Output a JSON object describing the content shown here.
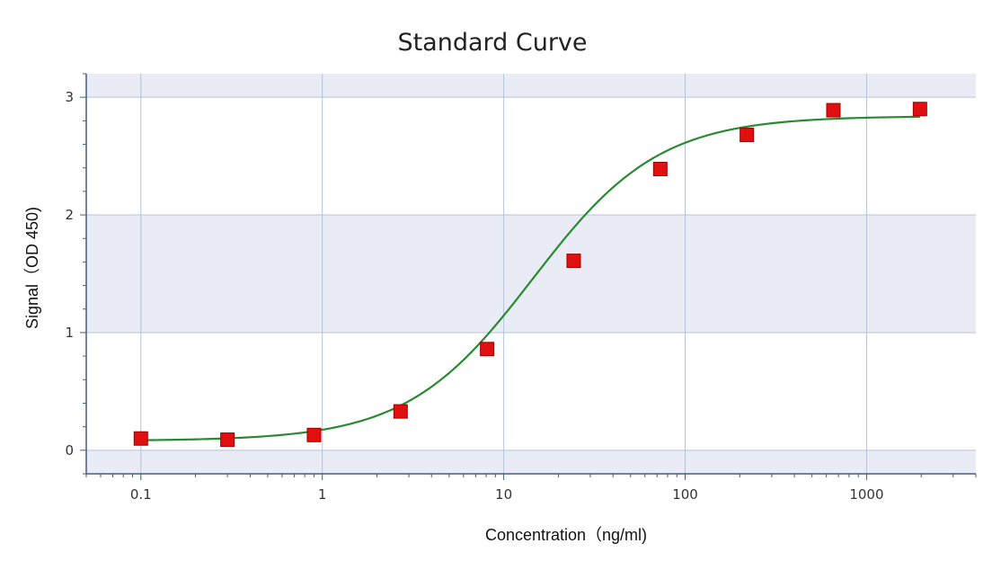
{
  "chart_data": {
    "type": "scatter",
    "title": "Standard Curve",
    "xlabel": "Concentration（ng/ml)",
    "ylabel": "Signal（OD 450)",
    "x_scale": "log",
    "xlim": [
      0.05,
      4000
    ],
    "ylim": [
      -0.2,
      3.2
    ],
    "x_ticks": [
      0.1,
      1,
      10,
      100,
      1000
    ],
    "x_tick_labels": [
      "0.1",
      "1",
      "10",
      "100",
      "1000"
    ],
    "y_ticks": [
      0,
      1,
      2,
      3
    ],
    "y_tick_labels": [
      "0",
      "1",
      "2",
      "3"
    ],
    "grid": true,
    "series": [
      {
        "kind": "points",
        "marker": "square",
        "x": [
          0.1,
          0.3,
          0.9,
          2.7,
          8.1,
          24.3,
          72.9,
          218.7,
          656.1,
          1968.3
        ],
        "y": [
          0.1,
          0.09,
          0.13,
          0.33,
          0.86,
          1.61,
          2.39,
          2.68,
          2.89,
          2.9
        ]
      },
      {
        "kind": "fit",
        "model": "4PL",
        "params": {
          "bottom": 0.08,
          "top": 2.84,
          "ec50": 14.5,
          "hill": 1.25
        },
        "x_range": [
          0.1,
          1968.3
        ]
      }
    ]
  },
  "colors": {
    "point": "#e01010",
    "point_border": "#a00000",
    "curve": "#2a8a32",
    "band": "#e9ecf4",
    "grid": "#b9c2d6",
    "axis": "#4a5a80"
  }
}
